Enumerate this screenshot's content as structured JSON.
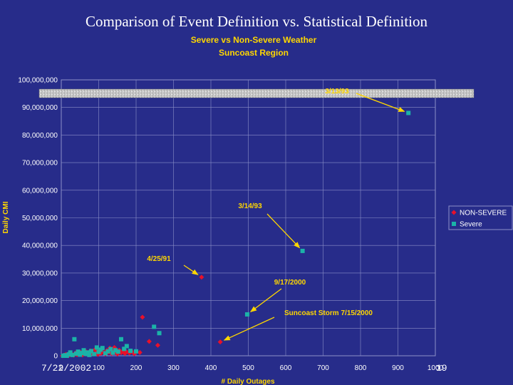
{
  "slide": {
    "title": "Comparison of Event Definition vs. Statistical Definition",
    "footer_date": "7/22/2002",
    "page_number": "19"
  },
  "chart_data": {
    "type": "scatter",
    "title": "Severe vs Non-Severe Weather",
    "subtitle": "Suncoast Region",
    "xlabel": "# Daily Outages",
    "ylabel": "Daily CMI",
    "xlim": [
      0,
      1000
    ],
    "ylim": [
      0,
      100000000
    ],
    "x_ticks": [
      "0",
      "100",
      "200",
      "300",
      "400",
      "500",
      "600",
      "700",
      "800",
      "900",
      "1000"
    ],
    "y_ticks": [
      "0",
      "10,000,000",
      "20,000,000",
      "30,000,000",
      "40,000,000",
      "50,000,000",
      "60,000,000",
      "70,000,000",
      "80,000,000",
      "90,000,000",
      "100,000,000"
    ],
    "grid": true,
    "legend_position": "right",
    "series": [
      {
        "name": "NON-SEVERE",
        "color": "#e8102a",
        "marker": "diamond",
        "points": [
          [
            3,
            0
          ],
          [
            8,
            200000
          ],
          [
            12,
            500000
          ],
          [
            18,
            0
          ],
          [
            22,
            300000
          ],
          [
            28,
            600000
          ],
          [
            33,
            200000
          ],
          [
            38,
            1000000
          ],
          [
            42,
            400000
          ],
          [
            48,
            800000
          ],
          [
            52,
            1200000
          ],
          [
            57,
            300000
          ],
          [
            62,
            700000
          ],
          [
            66,
            1500000
          ],
          [
            70,
            900000
          ],
          [
            74,
            400000
          ],
          [
            78,
            1800000
          ],
          [
            82,
            1000000
          ],
          [
            86,
            600000
          ],
          [
            90,
            2200000
          ],
          [
            94,
            1300000
          ],
          [
            98,
            500000
          ],
          [
            102,
            1600000
          ],
          [
            106,
            900000
          ],
          [
            110,
            2500000
          ],
          [
            114,
            1100000
          ],
          [
            118,
            600000
          ],
          [
            122,
            1900000
          ],
          [
            126,
            1300000
          ],
          [
            130,
            2800000
          ],
          [
            134,
            800000
          ],
          [
            138,
            1600000
          ],
          [
            142,
            3000000
          ],
          [
            146,
            1200000
          ],
          [
            150,
            600000
          ],
          [
            155,
            2000000
          ],
          [
            160,
            1100000
          ],
          [
            165,
            1700000
          ],
          [
            170,
            800000
          ],
          [
            175,
            1400000
          ],
          [
            182,
            1000000
          ],
          [
            188,
            1600000
          ],
          [
            195,
            700000
          ],
          [
            210,
            1200000
          ],
          [
            217,
            14000000
          ],
          [
            235,
            5200000
          ],
          [
            258,
            3800000
          ],
          [
            375,
            28500000
          ],
          [
            425,
            5000000
          ]
        ]
      },
      {
        "name": "Severe",
        "color": "#1bb3a8",
        "marker": "square",
        "points": [
          [
            5,
            0
          ],
          [
            10,
            200000
          ],
          [
            15,
            0
          ],
          [
            20,
            500000
          ],
          [
            24,
            1200000
          ],
          [
            30,
            300000
          ],
          [
            35,
            6000000
          ],
          [
            40,
            800000
          ],
          [
            45,
            1500000
          ],
          [
            50,
            400000
          ],
          [
            55,
            1000000
          ],
          [
            60,
            2000000
          ],
          [
            65,
            700000
          ],
          [
            70,
            1200000
          ],
          [
            75,
            300000
          ],
          [
            80,
            1700000
          ],
          [
            88,
            600000
          ],
          [
            95,
            3000000
          ],
          [
            100,
            1400000
          ],
          [
            105,
            2200000
          ],
          [
            110,
            2800000
          ],
          [
            118,
            900000
          ],
          [
            125,
            1600000
          ],
          [
            132,
            2400000
          ],
          [
            138,
            1100000
          ],
          [
            145,
            2000000
          ],
          [
            152,
            1500000
          ],
          [
            160,
            6000000
          ],
          [
            168,
            2500000
          ],
          [
            175,
            3500000
          ],
          [
            185,
            1800000
          ],
          [
            200,
            1600000
          ],
          [
            248,
            10500000
          ],
          [
            262,
            8200000
          ],
          [
            497,
            15000000
          ],
          [
            645,
            38000000
          ],
          [
            928,
            88000000
          ]
        ]
      }
    ],
    "annotations": [
      {
        "text": "3/13/93",
        "x": 928,
        "y": 88000000
      },
      {
        "text": "3/14/93",
        "x": 645,
        "y": 38000000
      },
      {
        "text": "4/25/91",
        "x": 375,
        "y": 28500000
      },
      {
        "text": "9/17/2000",
        "x": 497,
        "y": 15000000
      },
      {
        "text": "Suncoast Storm 7/15/2000",
        "x": 425,
        "y": 5000000
      }
    ]
  }
}
